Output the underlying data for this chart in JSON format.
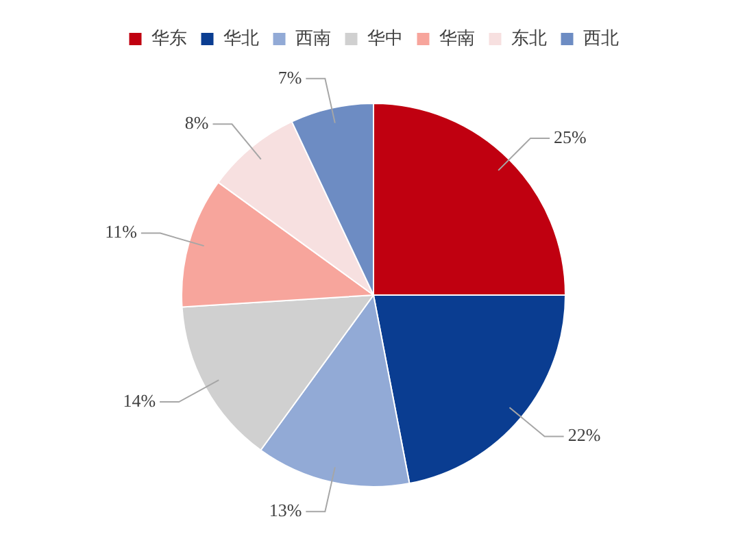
{
  "chart_data": {
    "type": "pie",
    "categories": [
      "华东",
      "华北",
      "西南",
      "华中",
      "华南",
      "东北",
      "西北"
    ],
    "values": [
      25,
      22,
      13,
      14,
      11,
      8,
      7
    ],
    "colors": [
      "#c00010",
      "#0a3d91",
      "#92aad6",
      "#d0d0d0",
      "#f7a59c",
      "#f7e0e0",
      "#6d8cc3"
    ],
    "value_labels": [
      "25%",
      "22%",
      "13%",
      "14%",
      "11%",
      "8%",
      "7%"
    ],
    "legend": "top"
  }
}
